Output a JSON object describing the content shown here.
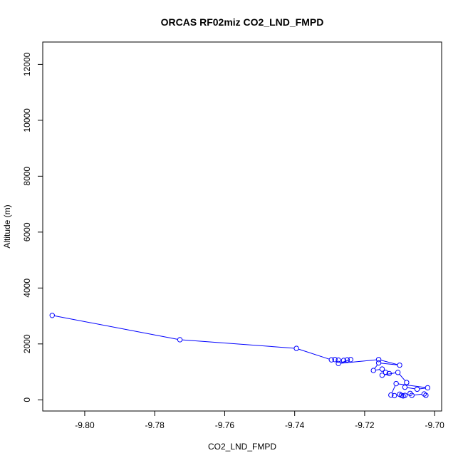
{
  "chart_data": {
    "type": "line",
    "title": "ORCAS RF02miz CO2_LND_FMPD",
    "xlabel": "CO2_LND_FMPD",
    "ylabel": "Altitude (m)",
    "xlim": [
      -9.812,
      -9.698
    ],
    "ylim": [
      -400,
      12800
    ],
    "x_ticks": [
      -9.8,
      -9.78,
      -9.76,
      -9.74,
      -9.72,
      -9.7
    ],
    "x_tick_labels": [
      "-9.80",
      "-9.78",
      "-9.76",
      "-9.74",
      "-9.72",
      "-9.70"
    ],
    "y_ticks": [
      0,
      2000,
      4000,
      6000,
      8000,
      10000,
      12000
    ],
    "y_tick_labels": [
      "0",
      "2000",
      "4000",
      "6000",
      "8000",
      "10000",
      "12000"
    ],
    "grid": false,
    "series": [
      {
        "color": "#0000ff",
        "marker": "open-circle",
        "points": [
          {
            "x": -9.8093,
            "y": 3020
          },
          {
            "x": -9.7728,
            "y": 2150
          },
          {
            "x": -9.7395,
            "y": 1840
          },
          {
            "x": -9.7295,
            "y": 1430
          },
          {
            "x": -9.7285,
            "y": 1440
          },
          {
            "x": -9.7275,
            "y": 1420
          },
          {
            "x": -9.726,
            "y": 1410
          },
          {
            "x": -9.725,
            "y": 1430
          },
          {
            "x": -9.724,
            "y": 1440
          },
          {
            "x": -9.7275,
            "y": 1300
          },
          {
            "x": -9.716,
            "y": 1440
          },
          {
            "x": -9.71,
            "y": 1240
          },
          {
            "x": -9.716,
            "y": 1320
          },
          {
            "x": -9.7175,
            "y": 1050
          },
          {
            "x": -9.715,
            "y": 1100
          },
          {
            "x": -9.714,
            "y": 980
          },
          {
            "x": -9.713,
            "y": 940
          },
          {
            "x": -9.715,
            "y": 880
          },
          {
            "x": -9.7105,
            "y": 980
          },
          {
            "x": -9.708,
            "y": 620
          },
          {
            "x": -9.7085,
            "y": 450
          },
          {
            "x": -9.705,
            "y": 380
          },
          {
            "x": -9.702,
            "y": 430
          },
          {
            "x": -9.711,
            "y": 580
          },
          {
            "x": -9.7125,
            "y": 170
          },
          {
            "x": -9.7115,
            "y": 150
          },
          {
            "x": -9.71,
            "y": 200
          },
          {
            "x": -9.7095,
            "y": 160
          },
          {
            "x": -9.709,
            "y": 140
          },
          {
            "x": -9.7085,
            "y": 160
          },
          {
            "x": -9.707,
            "y": 230
          },
          {
            "x": -9.7065,
            "y": 160
          },
          {
            "x": -9.703,
            "y": 210
          },
          {
            "x": -9.7025,
            "y": 160
          }
        ]
      }
    ]
  }
}
